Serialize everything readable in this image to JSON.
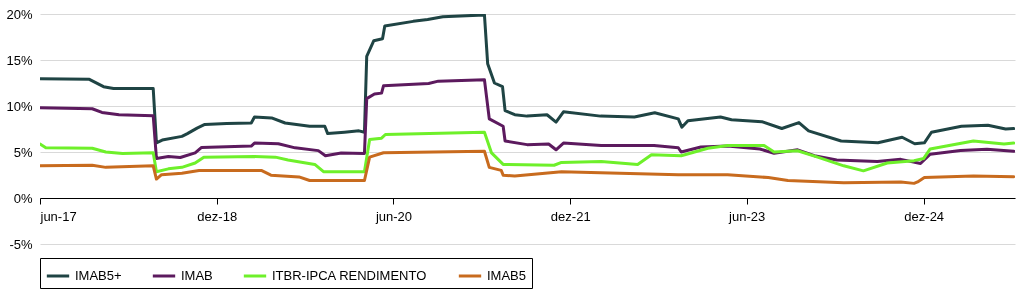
{
  "chart_data": {
    "type": "line",
    "xlim": [
      "2017-06-01",
      "2025-09-10"
    ],
    "ylim": [
      -5,
      20
    ],
    "xticks": [
      {
        "value": "2017-06-01",
        "label": "jun-17"
      },
      {
        "value": "2018-12-01",
        "label": "dez-18"
      },
      {
        "value": "2020-06-01",
        "label": "jun-20"
      },
      {
        "value": "2021-12-01",
        "label": "dez-21"
      },
      {
        "value": "2023-06-01",
        "label": "jun-23"
      },
      {
        "value": "2024-12-01",
        "label": "dez-24"
      }
    ],
    "yticks": [
      {
        "value": -5,
        "label": "-5%"
      },
      {
        "value": 0,
        "label": "0%"
      },
      {
        "value": 5,
        "label": "5%"
      },
      {
        "value": 10,
        "label": "10%"
      },
      {
        "value": 15,
        "label": "15%"
      },
      {
        "value": 20,
        "label": "20%"
      }
    ],
    "grid": "y",
    "legend": "bottom",
    "line_style": "solid",
    "series": [
      {
        "name": "IMAB5+",
        "color": "#1f4444",
        "x": [
          "2017-06-01",
          "2017-11-01",
          "2017-12-15",
          "2018-01-15",
          "2018-05-18",
          "2018-05-28",
          "2018-06-15",
          "2018-08-15",
          "2018-09-01",
          "2018-10-01",
          "2018-10-25",
          "2019-01-01",
          "2019-03-18",
          "2019-03-28",
          "2019-05-20",
          "2019-07-01",
          "2019-09-15",
          "2019-11-01",
          "2019-11-10",
          "2020-01-01",
          "2020-02-15",
          "2020-03-03",
          "2020-03-10",
          "2020-04-01",
          "2020-04-28",
          "2020-05-05",
          "2020-08-01",
          "2020-09-15",
          "2020-11-01",
          "2021-03-10",
          "2021-03-20",
          "2021-04-10",
          "2021-05-05",
          "2021-05-13",
          "2021-06-12",
          "2021-07-20",
          "2021-09-20",
          "2021-10-18",
          "2021-11-10",
          "2022-03-05",
          "2022-06-18",
          "2022-08-20",
          "2022-11-01",
          "2022-11-12",
          "2022-12-01",
          "2023-03-12",
          "2023-04-15",
          "2023-07-18",
          "2023-09-18",
          "2023-11-10",
          "2023-12-10",
          "2024-03-20",
          "2024-07-12",
          "2024-09-25",
          "2024-11-03",
          "2024-12-03",
          "2024-12-25",
          "2025-03-28",
          "2025-06-18",
          "2025-08-12",
          "2025-09-06"
        ],
        "values": [
          12.95,
          12.9,
          12.1,
          11.9,
          11.9,
          6.0,
          6.3,
          6.7,
          7.0,
          7.6,
          8.0,
          8.1,
          8.15,
          8.8,
          8.7,
          8.15,
          7.8,
          7.8,
          7.0,
          7.15,
          7.3,
          7.15,
          15.4,
          17.1,
          17.3,
          18.7,
          19.2,
          19.4,
          19.7,
          19.9,
          14.6,
          12.5,
          12.1,
          9.5,
          9.05,
          8.9,
          9.05,
          8.25,
          9.37,
          8.9,
          8.8,
          9.27,
          8.6,
          7.7,
          8.4,
          8.8,
          8.5,
          8.3,
          7.55,
          8.2,
          7.3,
          6.2,
          6.0,
          6.6,
          5.9,
          6.0,
          7.15,
          7.8,
          7.9,
          7.5,
          7.55
        ]
      },
      {
        "name": "IMAB",
        "color": "#5c1a5e",
        "x": [
          "2017-06-01",
          "2017-11-10",
          "2017-12-10",
          "2018-02-01",
          "2018-05-18",
          "2018-05-28",
          "2018-07-04",
          "2018-08-10",
          "2018-09-25",
          "2018-10-15",
          "2019-03-18",
          "2019-03-28",
          "2019-06-10",
          "2019-08-01",
          "2019-10-12",
          "2019-11-03",
          "2019-12-22",
          "2020-03-03",
          "2020-03-10",
          "2020-04-03",
          "2020-04-25",
          "2020-05-01",
          "2020-09-18",
          "2020-10-18",
          "2021-03-10",
          "2021-03-25",
          "2021-05-07",
          "2021-05-13",
          "2021-07-20",
          "2021-09-25",
          "2021-10-18",
          "2021-11-10",
          "2022-03-07",
          "2022-08-18",
          "2022-11-01",
          "2022-11-10",
          "2023-01-10",
          "2023-04-03",
          "2023-07-12",
          "2023-08-25",
          "2023-11-06",
          "2023-12-28",
          "2024-03-06",
          "2024-07-10",
          "2024-09-21",
          "2024-11-21",
          "2024-12-21",
          "2025-03-25",
          "2025-06-15",
          "2025-09-06"
        ],
        "values": [
          9.8,
          9.7,
          9.3,
          9.05,
          8.95,
          4.3,
          4.5,
          4.4,
          4.9,
          5.5,
          5.65,
          5.97,
          5.9,
          5.45,
          5.15,
          4.6,
          4.9,
          4.85,
          10.8,
          11.3,
          11.4,
          12.2,
          12.45,
          12.7,
          12.85,
          8.6,
          7.8,
          6.2,
          5.8,
          5.87,
          5.24,
          5.97,
          5.7,
          5.7,
          5.46,
          5.0,
          5.55,
          5.65,
          5.33,
          4.86,
          5.24,
          4.6,
          4.13,
          3.97,
          4.2,
          3.75,
          4.76,
          5.17,
          5.3,
          5.08
        ]
      },
      {
        "name": "ITBR-IPCA RENDIMENTO",
        "color": "#6ef02a",
        "x": [
          "2017-06-01",
          "2017-06-19",
          "2017-11-10",
          "2017-12-22",
          "2018-02-12",
          "2018-05-18",
          "2018-05-28",
          "2018-07-04",
          "2018-08-15",
          "2018-09-25",
          "2018-10-22",
          "2019-03-28",
          "2019-06-01",
          "2019-07-10",
          "2019-10-01",
          "2019-10-28",
          "2020-03-03",
          "2020-03-19",
          "2020-04-25",
          "2020-05-07",
          "2021-03-10",
          "2021-04-01",
          "2021-05-07",
          "2021-10-12",
          "2021-11-04",
          "2022-03-07",
          "2022-06-28",
          "2022-08-10",
          "2022-11-10",
          "2023-02-01",
          "2023-04-03",
          "2023-07-25",
          "2023-08-25",
          "2023-11-06",
          "2024-01-07",
          "2024-03-28",
          "2024-05-28",
          "2024-08-10",
          "2024-11-01",
          "2024-12-01",
          "2024-12-21",
          "2025-05-04",
          "2025-08-07",
          "2025-09-06"
        ],
        "values": [
          5.87,
          5.46,
          5.4,
          5.0,
          4.83,
          4.92,
          2.86,
          3.17,
          3.33,
          3.8,
          4.44,
          4.5,
          4.44,
          4.13,
          3.65,
          2.86,
          2.86,
          6.35,
          6.5,
          6.9,
          7.14,
          4.9,
          3.65,
          3.56,
          3.87,
          3.97,
          3.65,
          4.7,
          4.6,
          5.4,
          5.7,
          5.7,
          5.0,
          5.14,
          4.44,
          3.5,
          2.95,
          3.8,
          4.06,
          4.3,
          5.33,
          6.2,
          5.87,
          5.97
        ]
      },
      {
        "name": "IMAB5",
        "color": "#c86b1e",
        "x": [
          "2017-06-01",
          "2017-11-10",
          "2017-12-22",
          "2018-05-18",
          "2018-05-28",
          "2018-06-13",
          "2018-08-15",
          "2018-10-07",
          "2019-04-18",
          "2019-05-18",
          "2019-08-13",
          "2019-09-15",
          "2020-03-03",
          "2020-03-19",
          "2020-05-01",
          "2021-03-10",
          "2021-03-25",
          "2021-05-01",
          "2021-05-07",
          "2021-06-12",
          "2021-11-04",
          "2022-11-01",
          "2023-04-03",
          "2023-08-07",
          "2023-10-07",
          "2024-03-28",
          "2024-09-21",
          "2024-11-01",
          "2024-11-12",
          "2024-12-03",
          "2025-05-04",
          "2025-09-06"
        ],
        "values": [
          3.5,
          3.56,
          3.33,
          3.5,
          2.06,
          2.54,
          2.7,
          3.0,
          3.0,
          2.48,
          2.29,
          1.9,
          1.9,
          4.44,
          4.92,
          5.08,
          3.33,
          3.0,
          2.48,
          2.38,
          2.86,
          2.54,
          2.54,
          2.22,
          1.9,
          1.65,
          1.75,
          1.59,
          1.75,
          2.22,
          2.38,
          2.32
        ]
      }
    ]
  }
}
